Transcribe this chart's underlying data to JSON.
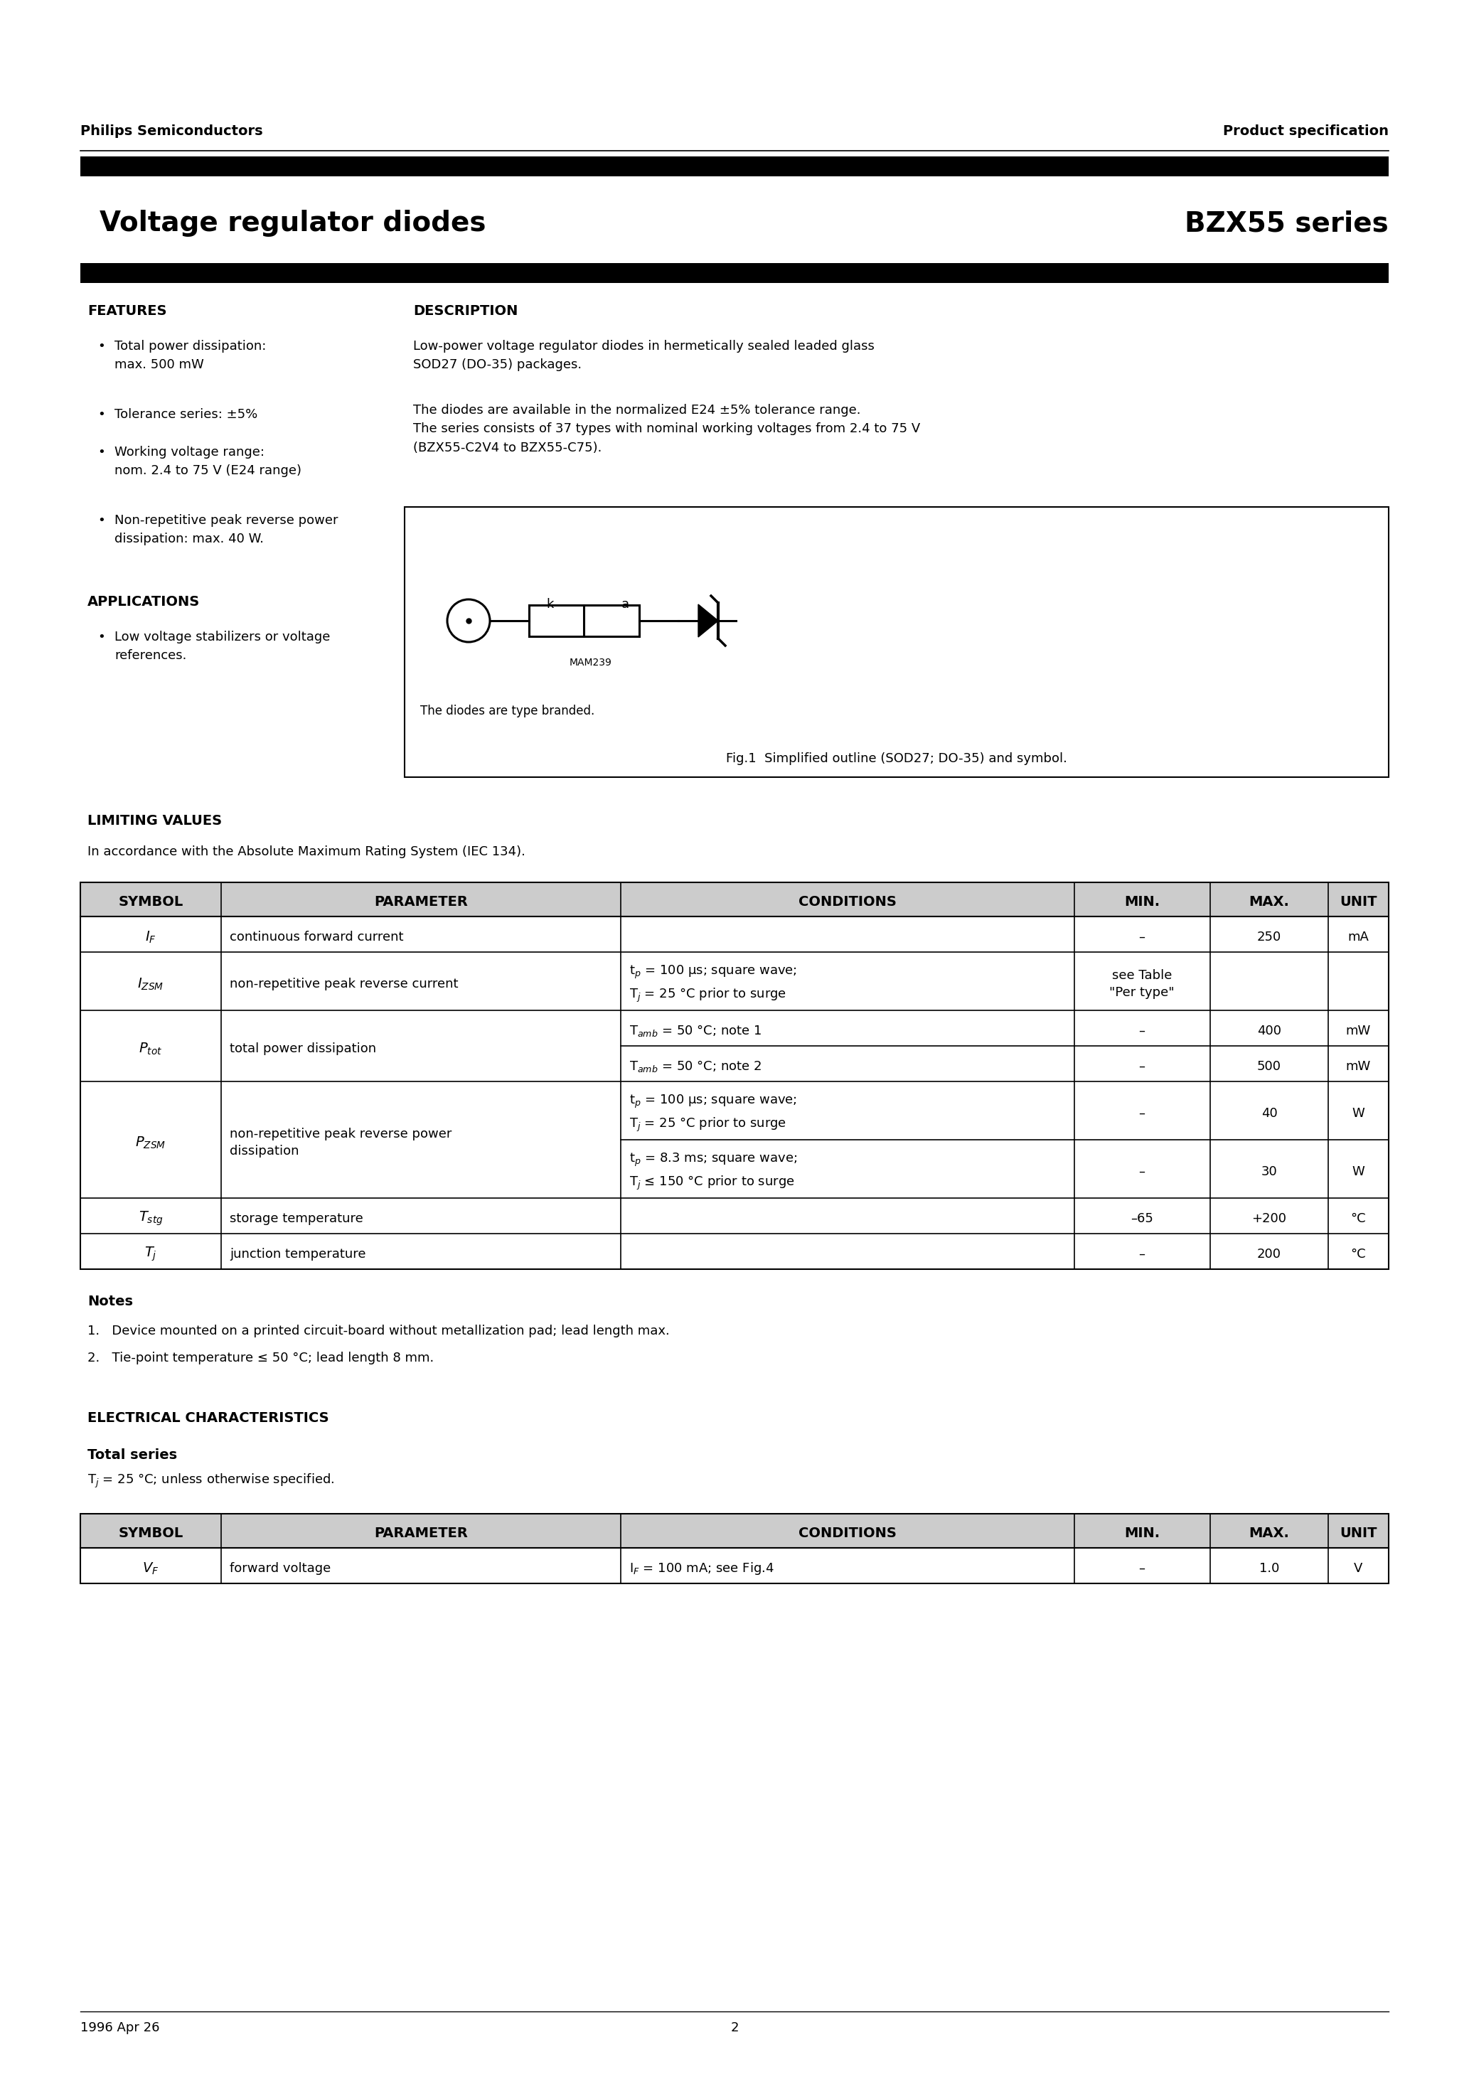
{
  "header_left": "Philips Semiconductors",
  "header_right": "Product specification",
  "page_title_left": "  Voltage regulator diodes",
  "page_title_right": "BZX55 series",
  "features_title": "FEATURES",
  "features_items": [
    "Total power dissipation:\nmax. 500 mW",
    "Tolerance series: ±5%",
    "Working voltage range:\nnom. 2.4 to 75 V (E24 range)",
    "Non-repetitive peak reverse power\ndissipation: max. 40 W."
  ],
  "applications_title": "APPLICATIONS",
  "applications_items": [
    "Low voltage stabilizers or voltage\nreferences."
  ],
  "description_title": "DESCRIPTION",
  "description_p1": "Low-power voltage regulator diodes in hermetically sealed leaded glass\nSOD27 (DO-35) packages.",
  "description_p2": "The diodes are available in the normalized E24 ±5% tolerance range.\nThe series consists of 37 types with nominal working voltages from 2.4 to 75 V\n(BZX55-C2V4 to BZX55-C75).",
  "fig_note": "The diodes are type branded.",
  "fig_caption": "Fig.1  Simplified outline (SOD27; DO-35) and symbol.",
  "lv_title": "LIMITING VALUES",
  "lv_subtitle": "In accordance with the Absolute Maximum Rating System (IEC 134).",
  "lv_headers": [
    "SYMBOL",
    "PARAMETER",
    "CONDITIONS",
    "MIN.",
    "MAX.",
    "UNIT"
  ],
  "lv_col_widths": [
    155,
    440,
    500,
    150,
    130,
    65
  ],
  "lv_rows": [
    {
      "symbol": "$I_F$",
      "parameter": "continuous forward current",
      "conditions": "",
      "min": "–",
      "max": "250",
      "unit": "mA",
      "sym_rows": 1,
      "par_rows": 1,
      "cond_rows": 1
    },
    {
      "symbol": "$I_{ZSM}$",
      "parameter": "non-repetitive peak reverse current",
      "conditions": "t$_p$ = 100 μs; square wave;\nT$_j$ = 25 °C prior to surge",
      "min": "see Table\n\"Per type\"",
      "max": "",
      "unit": "",
      "sym_rows": 1,
      "par_rows": 1,
      "cond_rows": 1
    },
    {
      "symbol": "$P_{tot}$",
      "parameter": "total power dissipation",
      "conditions": "T$_{amb}$ = 50 °C; note 1",
      "min": "–",
      "max": "400",
      "unit": "mW",
      "sym_rows": 2,
      "par_rows": 2,
      "cond_rows": 1
    },
    {
      "symbol": "",
      "parameter": "",
      "conditions": "T$_{amb}$ = 50 °C; note 2",
      "min": "–",
      "max": "500",
      "unit": "mW",
      "sym_rows": 0,
      "par_rows": 0,
      "cond_rows": 1
    },
    {
      "symbol": "$P_{ZSM}$",
      "parameter": "non-repetitive peak reverse power\ndissipation",
      "conditions": "t$_p$ = 100 μs; square wave;\nT$_j$ = 25 °C prior to surge",
      "min": "–",
      "max": "40",
      "unit": "W",
      "sym_rows": 2,
      "par_rows": 2,
      "cond_rows": 1
    },
    {
      "symbol": "",
      "parameter": "",
      "conditions": "t$_p$ = 8.3 ms; square wave;\nT$_j$ ≤ 150 °C prior to surge",
      "min": "–",
      "max": "30",
      "unit": "W",
      "sym_rows": 0,
      "par_rows": 0,
      "cond_rows": 1
    },
    {
      "symbol": "$T_{stg}$",
      "parameter": "storage temperature",
      "conditions": "",
      "min": "–65",
      "max": "+200",
      "unit": "°C",
      "sym_rows": 1,
      "par_rows": 1,
      "cond_rows": 1
    },
    {
      "symbol": "$T_j$",
      "parameter": "junction temperature",
      "conditions": "",
      "min": "–",
      "max": "200",
      "unit": "°C",
      "sym_rows": 1,
      "par_rows": 1,
      "cond_rows": 1
    }
  ],
  "notes_title": "Notes",
  "notes": [
    "1.   Device mounted on a printed circuit-board without metallization pad; lead length max.",
    "2.   Tie-point temperature ≤ 50 °C; lead length 8 mm."
  ],
  "ec_title": "ELECTRICAL CHARACTERISTICS",
  "ec_subtitle1": "Total series",
  "ec_subtitle2": "T$_j$ = 25 °C; unless otherwise specified.",
  "ec_headers": [
    "SYMBOL",
    "PARAMETER",
    "CONDITIONS",
    "MIN.",
    "MAX.",
    "UNIT"
  ],
  "ec_rows": [
    {
      "symbol": "$V_F$",
      "parameter": "forward voltage",
      "conditions": "I$_F$ = 100 mA; see Fig.4",
      "min": "–",
      "max": "1.0",
      "unit": "V"
    }
  ],
  "footer_left": "1996 Apr 26",
  "footer_center": "2"
}
